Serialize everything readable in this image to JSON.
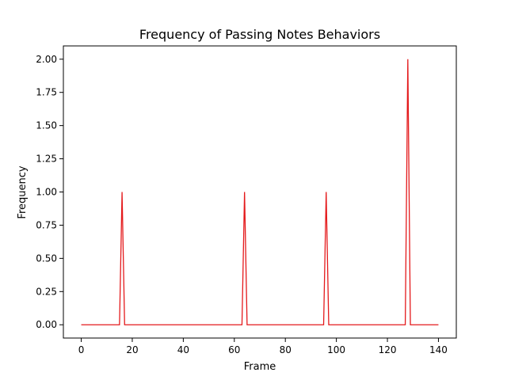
{
  "chart_data": {
    "type": "line",
    "title": "Frequency of Passing Notes Behaviors",
    "xlabel": "Frame",
    "ylabel": "Frequency",
    "xlim": [
      -7,
      147
    ],
    "ylim": [
      -0.1,
      2.1
    ],
    "x_ticks": [
      0,
      20,
      40,
      60,
      80,
      100,
      120,
      140
    ],
    "x_tick_labels": [
      "0",
      "20",
      "40",
      "60",
      "80",
      "100",
      "120",
      "140"
    ],
    "y_ticks": [
      0.0,
      0.25,
      0.5,
      0.75,
      1.0,
      1.25,
      1.5,
      1.75,
      2.0
    ],
    "y_tick_labels": [
      "0.00",
      "0.25",
      "0.50",
      "0.75",
      "1.00",
      "1.25",
      "1.50",
      "1.75",
      "2.00"
    ],
    "grid": false,
    "series": [
      {
        "color": "#e41a1c",
        "x": [
          0,
          15,
          16,
          17,
          63,
          64,
          65,
          95,
          96,
          97,
          127,
          128,
          129,
          140
        ],
        "y": [
          0,
          0,
          1,
          0,
          0,
          1,
          0,
          0,
          1,
          0,
          0,
          2,
          0,
          0
        ]
      }
    ]
  }
}
